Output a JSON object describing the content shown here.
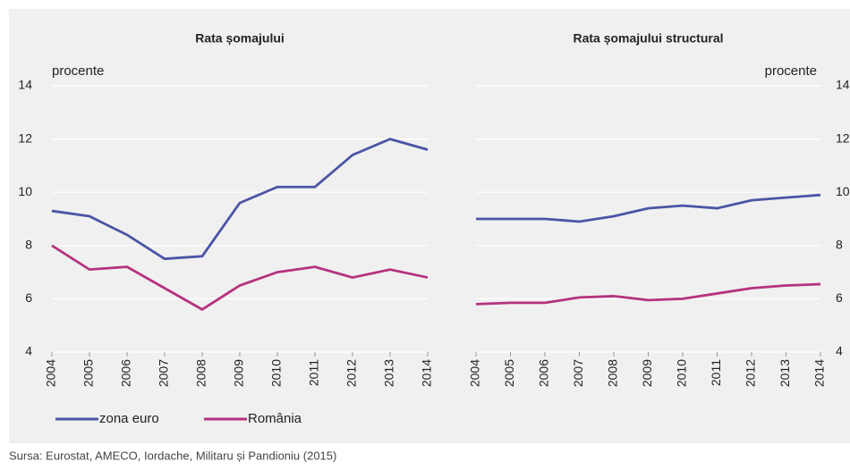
{
  "chart_data": [
    {
      "type": "line",
      "title": "Rata șomajului",
      "y_label": "procente",
      "categories": [
        "2004",
        "2005",
        "2006",
        "2007",
        "2008",
        "2009",
        "2010",
        "2011",
        "2012",
        "2013",
        "2014"
      ],
      "series": [
        {
          "name": "zona euro",
          "color": "#4b55a5",
          "values": [
            9.3,
            9.1,
            8.4,
            7.5,
            7.6,
            9.6,
            10.2,
            10.2,
            11.4,
            12.0,
            11.6
          ]
        },
        {
          "name": "România",
          "color": "#b5327f",
          "values": [
            8.0,
            7.1,
            7.2,
            6.4,
            5.6,
            6.5,
            7.0,
            7.2,
            6.8,
            7.1,
            6.8
          ]
        }
      ],
      "ylim": [
        4,
        14
      ],
      "yticks": [
        4,
        6,
        8,
        10,
        12,
        14
      ],
      "grid": true,
      "y_axis_side": "left"
    },
    {
      "type": "line",
      "title": "Rata șomajului structural",
      "y_label": "procente",
      "categories": [
        "2004",
        "2005",
        "2006",
        "2007",
        "2008",
        "2009",
        "2010",
        "2011",
        "2012",
        "2013",
        "2014"
      ],
      "series": [
        {
          "name": "zona euro",
          "color": "#4b55a5",
          "values": [
            9.0,
            9.0,
            9.0,
            8.9,
            9.1,
            9.4,
            9.5,
            9.4,
            9.7,
            9.8,
            9.9
          ]
        },
        {
          "name": "România",
          "color": "#b5327f",
          "values": [
            5.8,
            5.85,
            5.85,
            6.05,
            6.1,
            5.95,
            6.0,
            6.2,
            6.4,
            6.5,
            6.55
          ]
        }
      ],
      "ylim": [
        4,
        14
      ],
      "yticks": [
        4,
        6,
        8,
        10,
        12,
        14
      ],
      "grid": true,
      "y_axis_side": "right"
    }
  ],
  "source": "Sursa: Eurostat, AMECO, Iordache, Militaru și Pandioniu (2015)"
}
